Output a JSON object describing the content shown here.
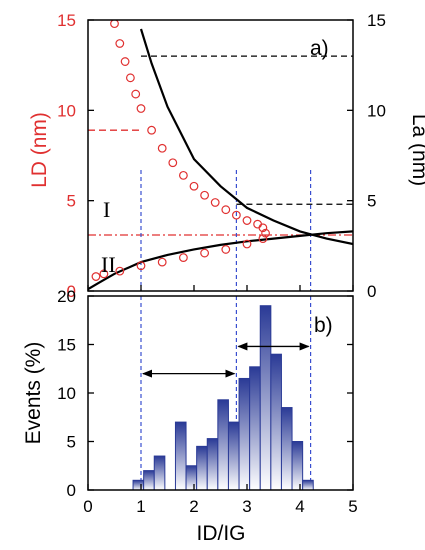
{
  "colors": {
    "ld": "#e03030",
    "la": "#000000",
    "guide": "#3a4fd0",
    "bar_top": "#2a3a96",
    "bar_bottom": "#ffffff",
    "arrow": "#000000"
  },
  "chart_data": [
    {
      "panel": "a)",
      "type": "line",
      "xlim": [
        0,
        5
      ],
      "xticks": [
        "0",
        "1",
        "2",
        "3",
        "4",
        "5"
      ],
      "left_axis": {
        "label": "LD (nm)",
        "ylim": [
          0,
          15
        ],
        "ticks": [
          "0",
          "5",
          "10",
          "15"
        ]
      },
      "right_axis": {
        "label": "La (nm)",
        "ylim": [
          0,
          15
        ],
        "ticks": [
          "0",
          "5",
          "10",
          "15"
        ]
      },
      "region_labels": [
        "I",
        "II"
      ],
      "ld_markers": {
        "x": [
          0.5,
          0.6,
          0.7,
          0.8,
          0.9,
          1.0,
          1.2,
          1.4,
          1.6,
          1.8,
          2.0,
          2.2,
          2.4,
          2.6,
          2.8,
          3.0,
          3.2,
          3.3,
          3.35,
          3.3,
          3.0,
          2.6,
          2.2,
          1.8,
          1.4,
          1.0,
          0.6,
          0.3,
          0.15
        ],
        "y": [
          14.8,
          13.7,
          12.7,
          11.8,
          10.9,
          10.1,
          8.9,
          7.9,
          7.1,
          6.4,
          5.8,
          5.3,
          4.9,
          4.5,
          4.2,
          3.9,
          3.7,
          3.5,
          3.2,
          2.9,
          2.6,
          2.3,
          2.1,
          1.85,
          1.6,
          1.4,
          1.1,
          0.95,
          0.8
        ]
      },
      "la_curve_descending": {
        "x": [
          1.0,
          1.2,
          1.5,
          2.0,
          2.5,
          3.0,
          3.5,
          4.0,
          4.5,
          5.0
        ],
        "y": [
          14.5,
          12.6,
          10.2,
          7.3,
          5.8,
          4.6,
          3.9,
          3.3,
          2.9,
          2.6
        ]
      },
      "la_curve_ascending": {
        "x": [
          0.0,
          0.2,
          0.5,
          1.0,
          1.5,
          2.0,
          2.5,
          3.0,
          3.5,
          4.0,
          4.5,
          5.0
        ],
        "y": [
          0.1,
          0.45,
          0.95,
          1.6,
          2.0,
          2.3,
          2.55,
          2.75,
          2.9,
          3.05,
          3.2,
          3.3
        ]
      },
      "reference_lines": {
        "ld_horizontal_y": [
          8.9,
          3.1
        ],
        "la_horizontal": [
          {
            "y": 13,
            "x_from": 1.0,
            "x_to": 5.0
          },
          {
            "y": 4.8,
            "x_from": 2.8,
            "x_to": 5.0
          }
        ],
        "vertical_x": [
          1.0,
          2.8,
          4.2
        ]
      }
    },
    {
      "panel": "b)",
      "type": "bar",
      "xlabel": "ID/IG",
      "ylabel": "Events (%)",
      "xlim": [
        0,
        5
      ],
      "ylim": [
        0,
        20
      ],
      "xticks": [
        "0",
        "1",
        "2",
        "3",
        "4",
        "5"
      ],
      "yticks": [
        "0",
        "5",
        "10",
        "15",
        "20"
      ],
      "bar_width": 0.2,
      "x": [
        0.95,
        1.15,
        1.35,
        1.55,
        1.75,
        1.95,
        2.15,
        2.35,
        2.55,
        2.75,
        2.95,
        3.15,
        3.35,
        3.55,
        3.75,
        3.95,
        4.15
      ],
      "values": [
        1,
        2,
        3.5,
        0,
        7,
        2.5,
        4.5,
        5.3,
        9.3,
        7,
        11.5,
        12.7,
        19,
        14,
        8.5,
        5,
        1
      ],
      "arrows": [
        {
          "from": 1.0,
          "to": 2.8,
          "y": 12
        },
        {
          "from": 2.8,
          "to": 4.2,
          "y": 14.8
        }
      ],
      "vertical_x": [
        1.0,
        2.8,
        4.2
      ]
    }
  ]
}
